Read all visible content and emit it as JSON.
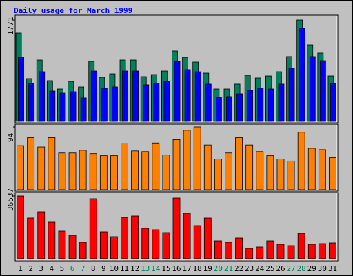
{
  "chart_data": {
    "type": "bar",
    "title": "Daily usage for March 1999",
    "categories": [
      "1",
      "2",
      "3",
      "4",
      "5",
      "6",
      "7",
      "8",
      "9",
      "10",
      "11",
      "12",
      "13",
      "14",
      "15",
      "16",
      "17",
      "18",
      "19",
      "20",
      "21",
      "22",
      "23",
      "24",
      "25",
      "26",
      "27",
      "28",
      "29",
      "30",
      "31"
    ],
    "category_colors": [
      "#000000",
      "#000000",
      "#000000",
      "#000000",
      "#000000",
      "#00805c",
      "#00805c",
      "#000000",
      "#000000",
      "#000000",
      "#000000",
      "#000000",
      "#00805c",
      "#00805c",
      "#000000",
      "#000000",
      "#000000",
      "#000000",
      "#000000",
      "#00805c",
      "#00805c",
      "#000000",
      "#000000",
      "#000000",
      "#000000",
      "#000000",
      "#00805c",
      "#00805c",
      "#000000",
      "#000000",
      "#000000"
    ],
    "panels": [
      {
        "ylim": [
          0,
          1771
        ],
        "yticks": [
          1771
        ],
        "series": [
          {
            "color": "#00805c",
            "values": [
              1542,
              747,
              1072,
              711,
              566,
              699,
              602,
              1048,
              771,
              831,
              1072,
              1072,
              783,
              819,
              879,
              1229,
              1120,
              1036,
              843,
              566,
              566,
              651,
              807,
              759,
              795,
              867,
              1133,
              1771,
              1337,
              1193,
              795
            ]
          },
          {
            "color": "#0000ff",
            "values": [
              1120,
              663,
              867,
              530,
              494,
              518,
              410,
              879,
              578,
              602,
              879,
              879,
              639,
              663,
              699,
              1048,
              904,
              867,
              651,
              422,
              434,
              482,
              542,
              578,
              566,
              651,
              928,
              1626,
              1133,
              1060,
              663
            ]
          }
        ]
      },
      {
        "ylim": [
          0,
          94
        ],
        "yticks": [
          94
        ],
        "series": [
          {
            "color": "#ff8000",
            "values": [
              66,
              78,
              64,
              78,
              55,
              55,
              59,
              54,
              51,
              51,
              69,
              58,
              57,
              70,
              52,
              75,
              89,
              94,
              67,
              46,
              55,
              78,
              67,
              57,
              51,
              46,
              43,
              86,
              62,
              60,
              48
            ]
          }
        ]
      },
      {
        "ylim": [
          0,
          36537
        ],
        "yticks": [
          36537
        ],
        "series": [
          {
            "color": "#ff0000",
            "values": [
              36537,
              23689,
              27303,
              21280,
              16060,
              13651,
              9636,
              34931,
              15659,
              12848,
              24090,
              24894,
              17666,
              16863,
              15257,
              35333,
              26500,
              19272,
              23689,
              10439,
              9636,
              12045,
              6023,
              6826,
              10439,
              8432,
              7629,
              14856,
              8432,
              8833,
              9235
            ]
          }
        ]
      }
    ]
  }
}
